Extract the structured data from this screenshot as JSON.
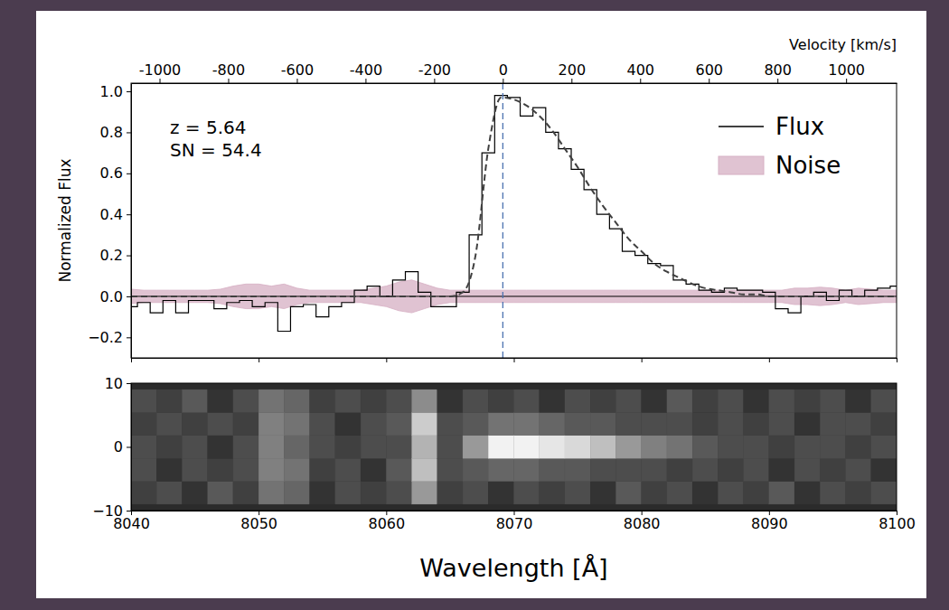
{
  "chart_data": [
    {
      "type": "line",
      "x": [
        8040,
        8041,
        8042,
        8043,
        8044,
        8045,
        8046,
        8047,
        8048,
        8049,
        8050,
        8051,
        8052,
        8053,
        8054,
        8055,
        8056,
        8057,
        8058,
        8059,
        8060,
        8061,
        8062,
        8063,
        8064,
        8065,
        8066,
        8067,
        8068,
        8069,
        8070,
        8071,
        8072,
        8073,
        8074,
        8075,
        8076,
        8077,
        8078,
        8079,
        8080,
        8081,
        8082,
        8083,
        8084,
        8085,
        8086,
        8087,
        8088,
        8089,
        8090,
        8091,
        8092,
        8093,
        8094,
        8095,
        8096,
        8097,
        8098,
        8099,
        8100
      ],
      "xlim": [
        8040,
        8100
      ],
      "ylim": [
        -0.3,
        1.04
      ],
      "yticks": [
        {
          "value": -0.2,
          "label": "−0.2"
        },
        {
          "value": 0,
          "label": "0.0"
        },
        0.2,
        0.4,
        0.6,
        0.8,
        {
          "value": 1,
          "label": "1.0"
        }
      ],
      "ylabel": "Normalized Flux",
      "x2lim": [
        -1083,
        1147
      ],
      "x2ticks": [
        -1000,
        -800,
        -600,
        -400,
        -200,
        0,
        200,
        400,
        600,
        800,
        1000
      ],
      "x2label": "Velocity [km/s]",
      "annotations": [
        "z = 5.64",
        "SN = 54.4"
      ],
      "legend": "upper right",
      "series": [
        {
          "name": "Flux",
          "type": "step",
          "color": "#000000",
          "line_style": "solid",
          "values": [
            -0.05,
            -0.03,
            -0.08,
            -0.02,
            -0.08,
            -0.02,
            -0.02,
            -0.06,
            -0.03,
            -0.02,
            -0.05,
            -0.03,
            -0.17,
            -0.05,
            -0.04,
            -0.1,
            -0.05,
            -0.03,
            0.03,
            0.05,
            0,
            0.08,
            0.12,
            0.02,
            -0.05,
            -0.05,
            0.02,
            0.3,
            0.7,
            0.98,
            0.97,
            0.88,
            0.92,
            0.8,
            0.72,
            0.62,
            0.52,
            0.4,
            0.33,
            0.22,
            0.2,
            0.16,
            0.15,
            0.08,
            0.06,
            0.03,
            0.02,
            0.04,
            0.03,
            0.03,
            0.02,
            -0.06,
            -0.08,
            0,
            0.02,
            -0.02,
            0.03,
            0,
            0.03,
            0.04,
            0.05
          ]
        },
        {
          "name": "Noise",
          "type": "band",
          "color": "#d6afc3",
          "values": [
            0.035,
            0.03,
            0.03,
            0.03,
            0.03,
            0.03,
            0.03,
            0.035,
            0.05,
            0.06,
            0.06,
            0.05,
            0.06,
            0.04,
            0.03,
            0.03,
            0.03,
            0.03,
            0.03,
            0.04,
            0.05,
            0.07,
            0.08,
            0.06,
            0.04,
            0.03,
            0.03,
            0.03,
            0.03,
            0.03,
            0.03,
            0.03,
            0.03,
            0.03,
            0.03,
            0.03,
            0.03,
            0.03,
            0.03,
            0.03,
            0.03,
            0.03,
            0.03,
            0.03,
            0.03,
            0.03,
            0.03,
            0.03,
            0.03,
            0.03,
            0.03,
            0.03,
            0.04,
            0.04,
            0.045,
            0.04,
            0.03,
            0.04,
            0.035,
            0.03,
            0.03
          ]
        },
        {
          "type": "line",
          "color": "#404040",
          "line_style": "dashed",
          "values": [
            0,
            0,
            0,
            0,
            0,
            0,
            0,
            0,
            0,
            0,
            0,
            0,
            0,
            0,
            0,
            0,
            0,
            0,
            0,
            0,
            0,
            0,
            0,
            0,
            0,
            0,
            0.02,
            0.2,
            0.72,
            0.97,
            0.96,
            0.93,
            0.88,
            0.81,
            0.72,
            0.63,
            0.53,
            0.44,
            0.36,
            0.28,
            0.22,
            0.16,
            0.12,
            0.09,
            0.06,
            0.04,
            0.03,
            0.02,
            0.01,
            0.01,
            0,
            0,
            0,
            0,
            0,
            0,
            0,
            0,
            0,
            0,
            0
          ]
        }
      ],
      "vlines": [
        {
          "value": 8069.14,
          "color": "#4c72b0",
          "line_style": "dashed"
        }
      ],
      "hlines": [
        {
          "value": 0,
          "color": "#000000",
          "line_style": "solid"
        }
      ]
    },
    {
      "type": "heatmap",
      "xlim": [
        8040,
        8100
      ],
      "xticks": [
        8040,
        8050,
        8060,
        8070,
        8080,
        8090,
        8100
      ],
      "xlabel": "Wavelength [Å]",
      "ylim": [
        -10,
        10
      ],
      "yticks": [
        {
          "value": -10,
          "label": "−10"
        },
        0,
        10
      ],
      "image": {
        "x_edges": [
          8040,
          8042,
          8044,
          8046,
          8048,
          8050,
          8052,
          8054,
          8056,
          8058,
          8060,
          8062,
          8064,
          8066,
          8068,
          8070,
          8072,
          8074,
          8076,
          8078,
          8080,
          8082,
          8084,
          8086,
          8088,
          8090,
          8092,
          8094,
          8096,
          8098,
          8100
        ],
        "y_edges": [
          -9,
          -5.4,
          -1.8,
          1.8,
          5.4,
          9
        ],
        "zlim": [
          0,
          1
        ],
        "values": [
          [
            0.25,
            0.3,
            0.2,
            0.35,
            0.25,
            0.45,
            0.4,
            0.2,
            0.3,
            0.25,
            0.3,
            0.6,
            0.25,
            0.3,
            0.2,
            0.3,
            0.25,
            0.3,
            0.2,
            0.35,
            0.25,
            0.3,
            0.2,
            0.3,
            0.25,
            0.35,
            0.2,
            0.3,
            0.25,
            0.3
          ],
          [
            0.3,
            0.2,
            0.3,
            0.25,
            0.3,
            0.5,
            0.45,
            0.25,
            0.3,
            0.2,
            0.35,
            0.75,
            0.3,
            0.35,
            0.4,
            0.4,
            0.35,
            0.35,
            0.3,
            0.3,
            0.3,
            0.25,
            0.3,
            0.25,
            0.3,
            0.2,
            0.3,
            0.25,
            0.3,
            0.2
          ],
          [
            0.3,
            0.25,
            0.3,
            0.2,
            0.3,
            0.5,
            0.4,
            0.3,
            0.25,
            0.3,
            0.3,
            0.7,
            0.3,
            0.6,
            0.95,
            0.95,
            0.9,
            0.85,
            0.75,
            0.6,
            0.5,
            0.45,
            0.35,
            0.3,
            0.3,
            0.25,
            0.3,
            0.3,
            0.25,
            0.3
          ],
          [
            0.25,
            0.3,
            0.25,
            0.3,
            0.25,
            0.5,
            0.45,
            0.3,
            0.2,
            0.3,
            0.35,
            0.8,
            0.3,
            0.35,
            0.45,
            0.45,
            0.4,
            0.35,
            0.35,
            0.3,
            0.3,
            0.3,
            0.25,
            0.3,
            0.25,
            0.3,
            0.2,
            0.3,
            0.3,
            0.25
          ],
          [
            0.3,
            0.25,
            0.35,
            0.2,
            0.3,
            0.45,
            0.4,
            0.25,
            0.3,
            0.25,
            0.3,
            0.55,
            0.2,
            0.3,
            0.25,
            0.3,
            0.2,
            0.3,
            0.25,
            0.3,
            0.2,
            0.35,
            0.25,
            0.3,
            0.2,
            0.3,
            0.25,
            0.3,
            0.2,
            0.3
          ]
        ]
      }
    }
  ]
}
